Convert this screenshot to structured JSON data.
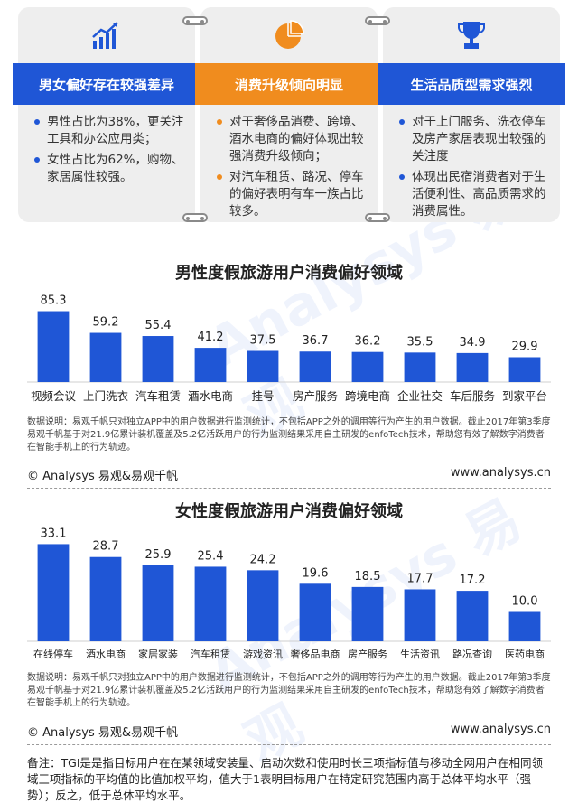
{
  "cards": [
    {
      "icon": "growth-chart-icon",
      "title": "男女偏好存在较强差异",
      "color": "#1f56d6",
      "bullets": [
        "男性占比为38%，更关注工具和办公应用类；",
        "女性占比为62%，购物、家居属性较强。"
      ]
    },
    {
      "icon": "pie-chart-icon",
      "title": "消费升级倾向明显",
      "color": "#f08c1e",
      "bullets": [
        "对于奢侈品消费、跨境、酒水电商的偏好体现出较强消费升级倾向；",
        "对汽车租赁、路况、停车的偏好表明有车一族占比较多。"
      ]
    },
    {
      "icon": "trophy-icon",
      "title": "生活品质型需求强烈",
      "color": "#1f56d6",
      "bullets": [
        "对于上门服务、洗衣停车及房产家居表现出较强的关注度",
        "体现出民宿消费者对于生活便利性、高品质需求的消费属性。"
      ]
    }
  ],
  "chart_data": [
    {
      "type": "bar",
      "title": "男性度假旅游用户消费偏好领域",
      "categories": [
        "视频会议",
        "上门洗衣",
        "汽车租赁",
        "酒水电商",
        "挂号",
        "房产服务",
        "跨境电商",
        "企业社交",
        "车后服务",
        "到家平台"
      ],
      "values": [
        85.3,
        59.2,
        55.4,
        41.2,
        37.5,
        36.7,
        36.2,
        35.5,
        34.9,
        29.9
      ],
      "ylim": [
        0,
        100
      ],
      "grid": false,
      "bar_color": "#1f56d6"
    },
    {
      "type": "bar",
      "title": "女性度假旅游用户消费偏好领域",
      "categories": [
        "在线停车",
        "酒水电商",
        "家居家装",
        "汽车租赁",
        "游戏资讯",
        "奢侈品电商",
        "房产服务",
        "生活资讯",
        "路况查询",
        "医药电商"
      ],
      "values": [
        33.1,
        28.7,
        25.9,
        25.4,
        24.2,
        19.6,
        18.5,
        17.7,
        17.2,
        10.0
      ],
      "ylim": [
        0,
        40
      ],
      "grid": false,
      "bar_color": "#1f56d6"
    }
  ],
  "data_note": "数据说明：易观千帆只对独立APP中的用户数据进行监测统计，不包括APP之外的调用等行为产生的用户数据。截止2017年第3季度易观千帆基于对21.9亿累计装机覆盖及5.2亿活跃用户的行为监测结果采用自主研发的enfoTech技术，帮助您有效了解数字消费者在智能手机上的行为轨迹。",
  "copyright": "© Analysys 易观&易观千帆",
  "website": "www.analysys.cn",
  "footnote": "备注：TGI是是指目标用户在在某领域安装量、启动次数和使用时长三项指标值与移动全网用户在相同领域三项指标的平均值的比值加权平均，值大于1表明目标用户在特定研究范围内高于总体平均水平（强势）；反之，低于总体平均水平。",
  "watermark": "Analysys 易观"
}
